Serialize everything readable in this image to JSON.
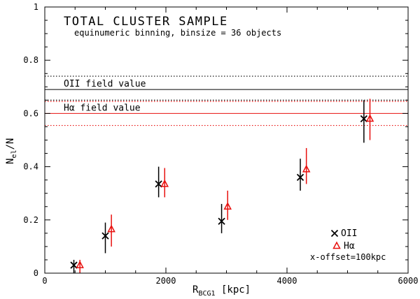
{
  "chart_data": {
    "type": "scatter",
    "title": "TOTAL CLUSTER SAMPLE",
    "subtitle": "equinumeric binning, binsize = 36 objects",
    "xlabel": {
      "main": "R",
      "sub": "BCG1",
      "tail": " [kpc]"
    },
    "ylabel": {
      "main": "N",
      "sub": "el",
      "tail": "/N"
    },
    "xlim": [
      0,
      6000
    ],
    "ylim": [
      0,
      1
    ],
    "x_ticks": [
      0,
      2000,
      4000,
      6000
    ],
    "x_tick_labels": [
      "0",
      "2000",
      "4000",
      "6000"
    ],
    "y_ticks": [
      0,
      0.2,
      0.4,
      0.6,
      0.8,
      1
    ],
    "y_tick_labels": [
      "0",
      "0.2",
      "0.4",
      "0.6",
      "0.8",
      "1"
    ],
    "series": [
      {
        "name": "OII",
        "marker": "cross",
        "color": "#000000",
        "points": [
          {
            "x": 480,
            "y": 0.03,
            "ylow": 0.0,
            "yhigh": 0.05
          },
          {
            "x": 1000,
            "y": 0.14,
            "ylow": 0.075,
            "yhigh": 0.19
          },
          {
            "x": 1880,
            "y": 0.335,
            "ylow": 0.285,
            "yhigh": 0.4
          },
          {
            "x": 2920,
            "y": 0.195,
            "ylow": 0.15,
            "yhigh": 0.26
          },
          {
            "x": 4220,
            "y": 0.36,
            "ylow": 0.31,
            "yhigh": 0.43
          },
          {
            "x": 5270,
            "y": 0.58,
            "ylow": 0.49,
            "yhigh": 0.65
          }
        ]
      },
      {
        "name": "Hα",
        "marker": "triangle",
        "color": "#e8110f",
        "points": [
          {
            "x": 580,
            "y": 0.03,
            "ylow": 0.0,
            "yhigh": 0.05
          },
          {
            "x": 1100,
            "y": 0.165,
            "ylow": 0.1,
            "yhigh": 0.22
          },
          {
            "x": 1980,
            "y": 0.335,
            "ylow": 0.285,
            "yhigh": 0.395
          },
          {
            "x": 3020,
            "y": 0.25,
            "ylow": 0.2,
            "yhigh": 0.31
          },
          {
            "x": 4320,
            "y": 0.39,
            "ylow": 0.335,
            "yhigh": 0.47
          },
          {
            "x": 5370,
            "y": 0.58,
            "ylow": 0.5,
            "yhigh": 0.655
          }
        ]
      }
    ],
    "reference_lines": [
      {
        "label": "OII field value",
        "value": 0.69,
        "band": [
          0.65,
          0.74
        ],
        "color": "#000000"
      },
      {
        "label": "Hα field value",
        "value": 0.6,
        "band": [
          0.555,
          0.645
        ],
        "color": "#e8110f"
      }
    ],
    "legend": {
      "position": "bottom-right",
      "entries": [
        "OII",
        "Hα"
      ],
      "note": "x-offset=100kpc"
    },
    "grid": false
  }
}
